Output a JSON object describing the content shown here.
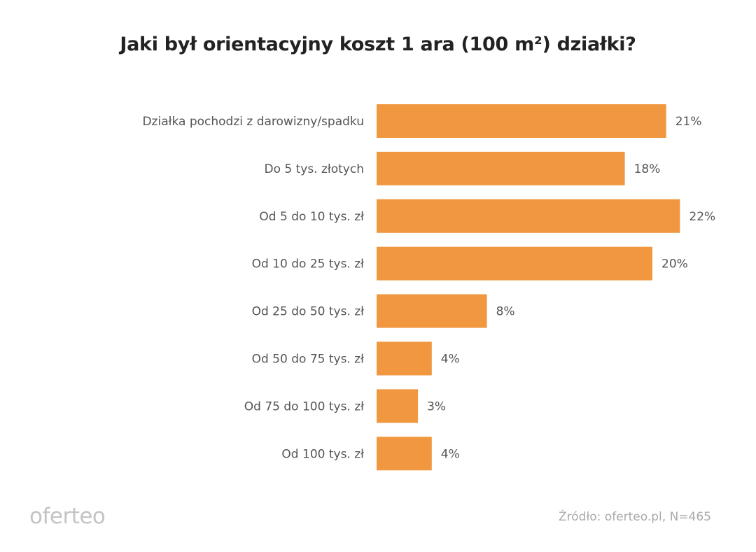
{
  "chart_data": {
    "type": "bar",
    "orientation": "horizontal",
    "title": "Jaki był orientacyjny koszt 1 ara (100 m²) działki?",
    "categories": [
      "Działka pochodzi z darowizny/spadku",
      "Do 5 tys. złotych",
      "Od 5 do 10 tys. zł",
      "Od 10 do 25 tys. zł",
      "Od 25 do 50 tys. zł",
      "Od 50 do 75 tys. zł",
      "Od 75 do 100 tys. zł",
      "Od 100 tys. zł"
    ],
    "values": [
      21,
      18,
      22,
      20,
      8,
      4,
      3,
      4
    ],
    "value_suffix": "%",
    "xlabel": "",
    "ylabel": "",
    "xlim": [
      0,
      22
    ],
    "grid": false,
    "bar_color": "#F0973F"
  },
  "footer": {
    "logo": "oferteo",
    "source": "Źródło: oferteo.pl, N=465"
  }
}
